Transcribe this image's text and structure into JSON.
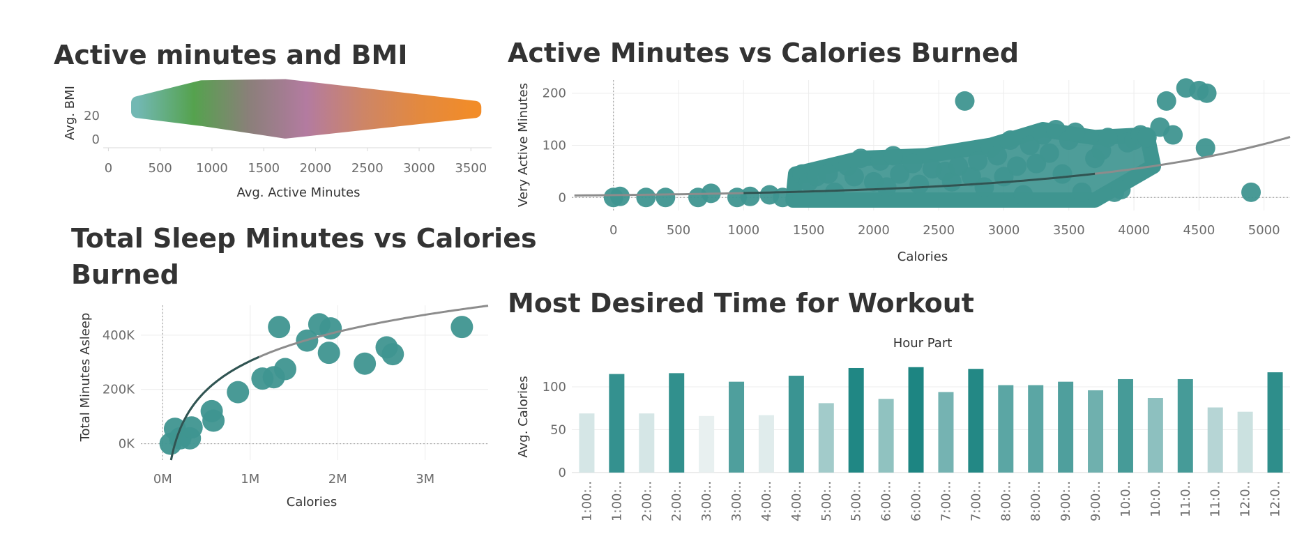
{
  "colors": {
    "teal": "#3f9590",
    "trend_light": "#8c8c8c",
    "trend_dark": "#2f5452",
    "bmi_gradient": [
      "#72b8b3",
      "#55a24e",
      "#8b7f7a",
      "#b37ba0",
      "#cd8567",
      "#e3893f",
      "#f28c28"
    ]
  },
  "charts": [
    {
      "id": "active-bmi",
      "title": "Active minutes and BMI",
      "chart_data": {
        "type": "area",
        "xlabel": "Avg. Active Minutes",
        "ylabel": "Avg. BMI",
        "xlim": [
          -50,
          3700
        ],
        "x_ticks": [
          "0",
          "500",
          "1000",
          "1500",
          "2000",
          "2500",
          "3000",
          "3500"
        ],
        "y_ticks": [
          "20",
          "0"
        ],
        "color_encoding": "gradient along x (teal → green → purple → orange)",
        "band": {
          "x": [
            280,
            900,
            1710,
            3540
          ],
          "top": [
            31,
            45,
            46,
            27
          ],
          "bottom": [
            23,
            16,
            5,
            23
          ]
        }
      }
    },
    {
      "id": "active-calories",
      "title": "Active Minutes vs Calories Burned",
      "chart_data": {
        "type": "scatter",
        "xlabel": "Calories",
        "ylabel": "Very Active Minutes",
        "xlim": [
          -320,
          5200
        ],
        "ylim": [
          -25,
          225
        ],
        "x_ticks": [
          0,
          500,
          1000,
          1500,
          2000,
          2500,
          3000,
          3500,
          4000,
          4500,
          5000
        ],
        "y_ticks": [
          0,
          100,
          200
        ],
        "grid": true,
        "trend": "exponential",
        "points_sampled_from_dense_cloud": [
          [
            0,
            0
          ],
          [
            50,
            2
          ],
          [
            250,
            0
          ],
          [
            400,
            0
          ],
          [
            650,
            0
          ],
          [
            750,
            8
          ],
          [
            950,
            0
          ],
          [
            1050,
            2
          ],
          [
            1200,
            5
          ],
          [
            1300,
            0
          ],
          [
            1450,
            45
          ],
          [
            1500,
            30
          ],
          [
            1560,
            40
          ],
          [
            1650,
            45
          ],
          [
            1700,
            10
          ],
          [
            1800,
            60
          ],
          [
            1850,
            40
          ],
          [
            1900,
            75
          ],
          [
            2000,
            30
          ],
          [
            2050,
            70
          ],
          [
            2100,
            20
          ],
          [
            2150,
            80
          ],
          [
            2200,
            45
          ],
          [
            2300,
            65
          ],
          [
            2350,
            25
          ],
          [
            2450,
            55
          ],
          [
            2550,
            50
          ],
          [
            2600,
            30
          ],
          [
            2650,
            60
          ],
          [
            2700,
            185
          ],
          [
            2750,
            40
          ],
          [
            2800,
            70
          ],
          [
            2850,
            20
          ],
          [
            2900,
            95
          ],
          [
            2950,
            80
          ],
          [
            3000,
            40
          ],
          [
            3050,
            110
          ],
          [
            3100,
            60
          ],
          [
            3150,
            5
          ],
          [
            3200,
            100
          ],
          [
            3250,
            65
          ],
          [
            3300,
            120
          ],
          [
            3350,
            85
          ],
          [
            3400,
            130
          ],
          [
            3450,
            45
          ],
          [
            3500,
            110
          ],
          [
            3550,
            125
          ],
          [
            3600,
            10
          ],
          [
            3700,
            75
          ],
          [
            3750,
            90
          ],
          [
            3800,
            115
          ],
          [
            3850,
            10
          ],
          [
            3900,
            15
          ],
          [
            3950,
            105
          ],
          [
            4000,
            110
          ],
          [
            4050,
            120
          ],
          [
            4100,
            115
          ],
          [
            4200,
            135
          ],
          [
            4250,
            185
          ],
          [
            4300,
            120
          ],
          [
            4400,
            210
          ],
          [
            4500,
            205
          ],
          [
            4550,
            95
          ],
          [
            4560,
            200
          ],
          [
            4900,
            10
          ]
        ]
      }
    },
    {
      "id": "sleep-calories",
      "title": "Total Sleep Minutes vs Calories Burned",
      "title_lines": [
        "Total Sleep Minutes vs Calories",
        "Burned"
      ],
      "chart_data": {
        "type": "scatter",
        "xlabel": "Calories",
        "ylabel": "Total Minutes Asleep",
        "xlim": [
          -250000,
          3720000
        ],
        "ylim": [
          -60000,
          510000
        ],
        "x_ticks": [
          "0M",
          "1M",
          "2M",
          "3M"
        ],
        "y_ticks": [
          "0K",
          "200K",
          "400K"
        ],
        "trend": "logarithmic",
        "points": [
          [
            90000,
            0
          ],
          [
            140000,
            55000
          ],
          [
            200000,
            20000
          ],
          [
            310000,
            20000
          ],
          [
            330000,
            60000
          ],
          [
            580000,
            85000
          ],
          [
            560000,
            120000
          ],
          [
            860000,
            190000
          ],
          [
            1140000,
            240000
          ],
          [
            1270000,
            245000
          ],
          [
            1400000,
            275000
          ],
          [
            1330000,
            430000
          ],
          [
            1650000,
            380000
          ],
          [
            1790000,
            440000
          ],
          [
            1920000,
            425000
          ],
          [
            1900000,
            335000
          ],
          [
            2310000,
            295000
          ],
          [
            2560000,
            355000
          ],
          [
            2630000,
            330000
          ],
          [
            3420000,
            430000
          ]
        ]
      }
    },
    {
      "id": "workout-time",
      "title": "Most Desired Time for Workout",
      "chart_data": {
        "type": "bar",
        "header": "Hour Part",
        "xlabel": "",
        "ylabel": "Avg. Calories",
        "ylim": [
          0,
          135
        ],
        "y_ticks": [
          0,
          50,
          100
        ],
        "categories": [
          "1:00:..",
          "1:00:..",
          "2:00:..",
          "2:00:..",
          "3:00:..",
          "3:00:..",
          "4:00:..",
          "4:00:..",
          "5:00:..",
          "5:00:..",
          "6:00:..",
          "6:00:..",
          "7:00:..",
          "7:00:..",
          "8:00:..",
          "8:00:..",
          "9:00:..",
          "9:00:..",
          "10:0..",
          "10:0..",
          "11:0..",
          "11:0..",
          "12:0..",
          "12:0.."
        ],
        "values": [
          69,
          115,
          69,
          116,
          66,
          106,
          67,
          113,
          81,
          122,
          86,
          123,
          94,
          121,
          102,
          102,
          106,
          96,
          109,
          87,
          109,
          76,
          71,
          117
        ],
        "color_encoding": "shade of teal by value (light = low, dark = high)"
      }
    }
  ]
}
